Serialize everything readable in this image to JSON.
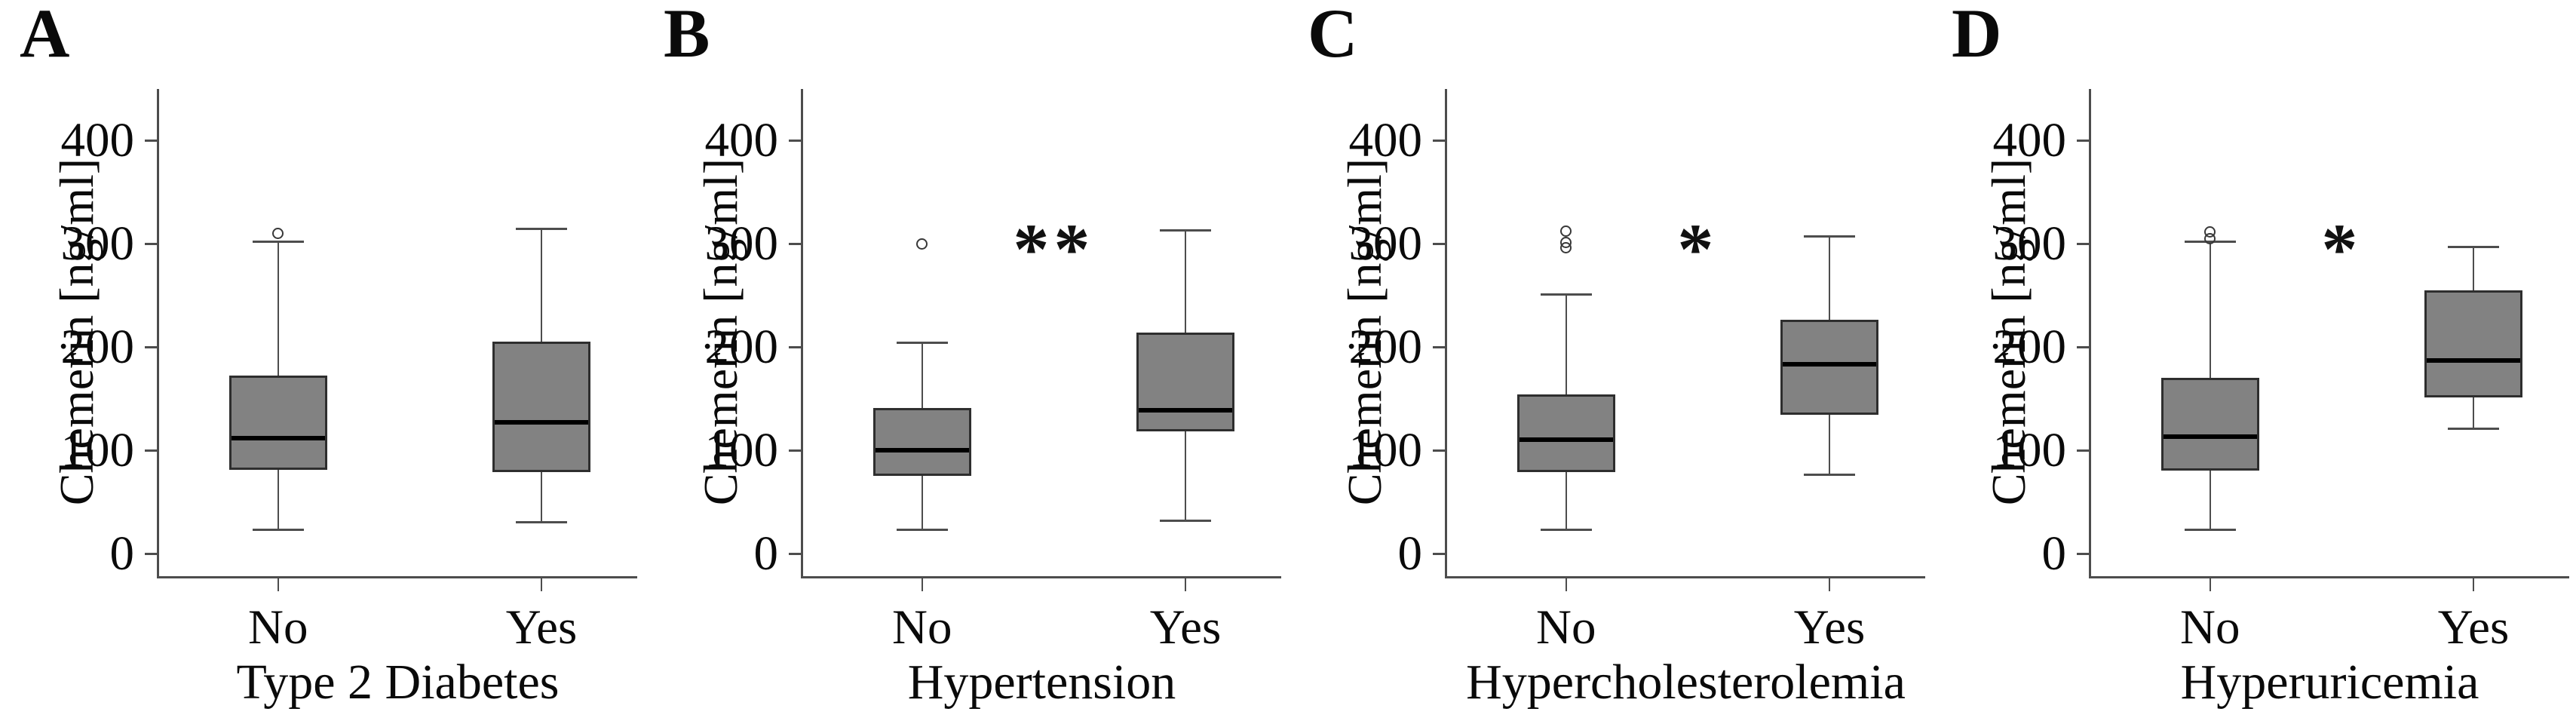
{
  "figure": {
    "ylabel": "Chemerin [ng/ml]",
    "ytick_labels": [
      "0",
      "100",
      "200",
      "300",
      "400"
    ],
    "ytick_values": [
      0,
      100,
      200,
      300,
      400
    ],
    "box_fill_color": "#828282",
    "line_color": "#4d4d4d",
    "text_color": "#000000"
  },
  "chart_data": [
    {
      "type": "boxplot",
      "letter": "A",
      "title": "Type 2 Diabetes",
      "ylabel": "Chemerin [ng/ml]",
      "ylim": [
        0,
        450
      ],
      "yticks": [
        0,
        100,
        200,
        300,
        400
      ],
      "categories": [
        "No",
        "Yes"
      ],
      "significance": null,
      "series": [
        {
          "name": "No",
          "whisker_low": 23,
          "q1": 81,
          "median": 112,
          "q3": 172,
          "whisker_high": 302,
          "outliers": [
            310
          ]
        },
        {
          "name": "Yes",
          "whisker_low": 30,
          "q1": 79,
          "median": 127,
          "q3": 205,
          "whisker_high": 314,
          "outliers": []
        }
      ]
    },
    {
      "type": "boxplot",
      "letter": "B",
      "title": "Hypertension",
      "ylabel": "Chemerin [ng/ml]",
      "ylim": [
        0,
        450
      ],
      "yticks": [
        0,
        100,
        200,
        300,
        400
      ],
      "categories": [
        "No",
        "Yes"
      ],
      "significance": "**",
      "series": [
        {
          "name": "No",
          "whisker_low": 23,
          "q1": 75,
          "median": 100,
          "q3": 141,
          "whisker_high": 204,
          "outliers": [
            300
          ]
        },
        {
          "name": "Yes",
          "whisker_low": 32,
          "q1": 118,
          "median": 139,
          "q3": 214,
          "whisker_high": 313,
          "outliers": []
        }
      ]
    },
    {
      "type": "boxplot",
      "letter": "C",
      "title": "Hypercholesterolemia",
      "ylabel": "Chemerin [ng/ml]",
      "ylim": [
        0,
        450
      ],
      "yticks": [
        0,
        100,
        200,
        300,
        400
      ],
      "categories": [
        "No",
        "Yes"
      ],
      "significance": "*",
      "series": [
        {
          "name": "No",
          "whisker_low": 23,
          "q1": 79,
          "median": 110,
          "q3": 154,
          "whisker_high": 251,
          "outliers": [
            296,
            301,
            312
          ]
        },
        {
          "name": "Yes",
          "whisker_low": 76,
          "q1": 134,
          "median": 183,
          "q3": 226,
          "whisker_high": 307,
          "outliers": []
        }
      ]
    },
    {
      "type": "boxplot",
      "letter": "D",
      "title": "Hyperuricemia",
      "ylabel": "Chemerin [ng/ml]",
      "ylim": [
        0,
        450
      ],
      "yticks": [
        0,
        100,
        200,
        300,
        400
      ],
      "categories": [
        "No",
        "Yes"
      ],
      "significance": "*",
      "series": [
        {
          "name": "No",
          "whisker_low": 23,
          "q1": 80,
          "median": 113,
          "q3": 170,
          "whisker_high": 302,
          "outliers": [
            305,
            311
          ]
        },
        {
          "name": "Yes",
          "whisker_low": 121,
          "q1": 151,
          "median": 187,
          "q3": 255,
          "whisker_high": 297,
          "outliers": []
        }
      ]
    }
  ]
}
